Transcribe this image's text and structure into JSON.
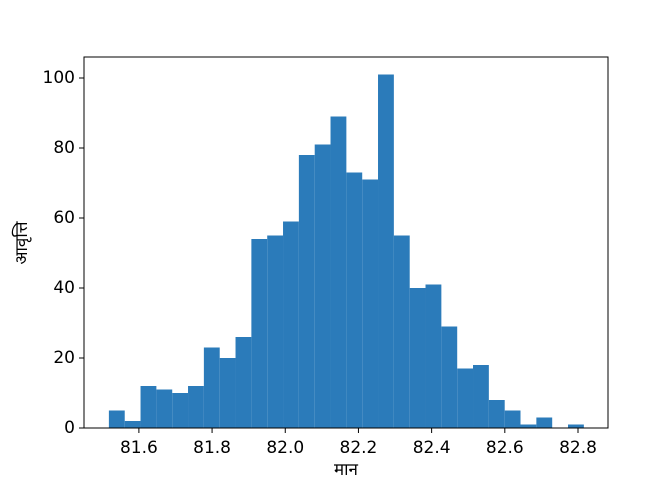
{
  "chart_data": {
    "type": "histogram",
    "x_label": "मान",
    "y_label": "आवृत्ति",
    "color": "#2b7bba",
    "bins": [
      81.518,
      81.5613,
      81.6045,
      81.6478,
      81.6911,
      81.7343,
      81.7776,
      81.8209,
      81.8641,
      81.9074,
      81.9507,
      81.9939,
      82.0372,
      82.0805,
      82.1237,
      82.167,
      82.2103,
      82.2535,
      82.2968,
      82.3401,
      82.3833,
      82.4266,
      82.4699,
      82.5131,
      82.5564,
      82.5997,
      82.6429,
      82.6862,
      82.7295,
      82.7727,
      82.816
    ],
    "counts": [
      5,
      2,
      12,
      11,
      10,
      12,
      23,
      20,
      26,
      54,
      55,
      59,
      78,
      81,
      89,
      73,
      71,
      101,
      55,
      40,
      41,
      29,
      17,
      18,
      8,
      5,
      1,
      3,
      0,
      1
    ],
    "xlim": [
      81.45,
      82.882
    ],
    "ylim": [
      0,
      106
    ],
    "xticks": [
      81.6,
      {
        "value": 81.8,
        "label": "81.8"
      },
      {
        "value": 82.0,
        "label": "82.0"
      },
      82.2,
      82.4,
      82.6,
      82.8
    ],
    "yticks": [
      0,
      20,
      40,
      60,
      80,
      100
    ]
  }
}
